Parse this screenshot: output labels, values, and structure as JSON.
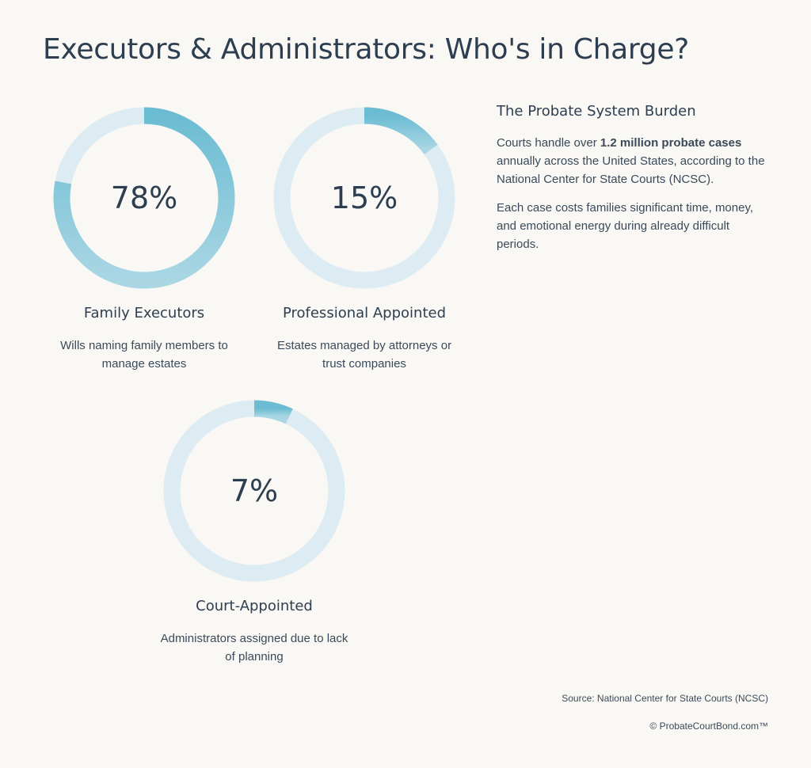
{
  "title": "Executors & Administrators: Who's in Charge?",
  "chart_data": [
    {
      "type": "donut",
      "title": "Family Executors",
      "caption": "Wills naming family members to manage estates",
      "values": [
        78
      ],
      "value_labels": [
        "78%"
      ],
      "color": "#6bbcd2",
      "track_color": "#ddecf3"
    },
    {
      "type": "donut",
      "title": "Professional Appointed",
      "caption": "Estates managed by attorneys or trust companies",
      "values": [
        15
      ],
      "value_labels": [
        "15%"
      ],
      "color": "#6bbcd2",
      "track_color": "#ddecf3"
    },
    {
      "type": "donut",
      "title": "Court-Appointed",
      "caption": "Administrators assigned due to lack of planning",
      "values": [
        7
      ],
      "value_labels": [
        "7%"
      ],
      "color": "#6bbcd2",
      "track_color": "#ddecf3"
    }
  ],
  "sidebar": {
    "heading": "The Probate System Burden",
    "paragraph_1": {
      "before": "Courts handle over ",
      "bold": "1.2 million probate cases",
      "after": " annually across the United States, according to the National Center for State Courts (NCSC)."
    },
    "paragraph_2": "Each case costs families significant time, money, and emotional energy during already difficult periods."
  },
  "source": "Source: National Center for State Courts (NCSC)",
  "copyright": "© ProbateCourtBond.com™"
}
